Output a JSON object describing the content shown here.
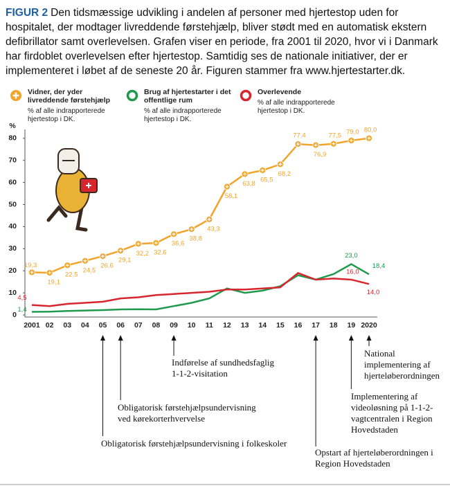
{
  "caption": {
    "label": "FIGUR 2",
    "text": "Den tidsmæssige udvikling i andelen af personer med hjertestop uden for hospitalet, der modtager livreddende førstehjælp, bliver stødt med en automatisk ekstern defibrillator samt overlevelsen. Grafen viser en periode, fra 2001 til 2020, hvor vi i Danmark har firdoblet overlevelsen efter hjertestop. Samtidig ses de nationale initiativer, der er implementeret i løbet af de seneste 20 år. Figuren stammer fra www.hjertestarter.dk."
  },
  "chart_data": {
    "type": "line",
    "y_label": "%",
    "categories": [
      "2001",
      "02",
      "03",
      "04",
      "05",
      "06",
      "07",
      "08",
      "09",
      "10",
      "11",
      "12",
      "13",
      "14",
      "15",
      "16",
      "17",
      "18",
      "19",
      "2020"
    ],
    "ylim": [
      0,
      84
    ],
    "yticks": [
      0,
      10,
      20,
      30,
      40,
      50,
      60,
      70,
      80
    ],
    "grid": false,
    "series": [
      {
        "name": "Vidner, der yder livreddende førstehjælp",
        "note": "% af alle indrapporterede hjertestop i DK.",
        "color": "#f2a42a",
        "marker": true,
        "values": [
          19.3,
          19.1,
          22.5,
          24.5,
          26.6,
          29.1,
          32.2,
          32.6,
          36.6,
          38.8,
          43.3,
          58.1,
          63.8,
          65.5,
          68.2,
          77.4,
          76.9,
          77.5,
          79.0,
          80.0
        ],
        "value_labels": [
          "19,3",
          "19,1",
          "22,5",
          "24,5",
          "26,6",
          "29,1",
          "32,2",
          "32,6",
          "36,6",
          "38,8",
          "43,3",
          "58,1",
          "63,8",
          "65,5",
          "68,2",
          "77,4",
          "76,9",
          "77,5",
          "79,0",
          "80,0"
        ]
      },
      {
        "name": "Brug af hjertestarter i det offentlige rum",
        "note": "% af alle indrapporterede hjertestop i DK.",
        "color": "#1f9a4d",
        "marker": false,
        "values": [
          1.4,
          1.5,
          1.8,
          2.0,
          2.2,
          2.5,
          2.6,
          2.5,
          4.0,
          5.5,
          7.5,
          12.0,
          10.0,
          11.0,
          13.0,
          18.0,
          16.0,
          18.5,
          23.0,
          18.4
        ],
        "value_labels": [
          "1,4",
          null,
          null,
          null,
          null,
          null,
          null,
          null,
          null,
          null,
          null,
          null,
          null,
          null,
          null,
          null,
          null,
          null,
          "23,0",
          "18,4"
        ]
      },
      {
        "name": "Overlevende",
        "note": "% af alle indrapporterede hjertestop i DK.",
        "color": "#d8262e",
        "marker": false,
        "values": [
          4.5,
          4.0,
          5.0,
          5.5,
          6.0,
          7.5,
          8.0,
          9.0,
          9.5,
          10.0,
          10.5,
          11.5,
          11.5,
          12.0,
          12.5,
          19.0,
          16.0,
          16.5,
          16.0,
          14.0
        ],
        "value_labels": [
          "4,5",
          null,
          null,
          null,
          null,
          null,
          null,
          null,
          null,
          null,
          null,
          null,
          null,
          null,
          null,
          null,
          null,
          null,
          "16,0",
          "14,0"
        ]
      }
    ],
    "annotations": [
      {
        "x": "09",
        "lines": [
          "Indførelse  af  sundhedsfaglig",
          "1-1-2-visitation"
        ]
      },
      {
        "x": "06",
        "lines": [
          "Obligatorisk  førstehjælpsundervisning",
          "ved kørekorterhvervelse"
        ]
      },
      {
        "x": "05",
        "lines": [
          "Obligatorisk  førstehjælpsundervisning  i folkeskoler"
        ]
      },
      {
        "x": "17",
        "lines": [
          "Opstart  af  hjerteløberordningen  i",
          "Region  Hovedstaden"
        ]
      },
      {
        "x": "19",
        "lines": [
          "Implementering  af",
          "videoløsning  på  1-1-2-",
          "vagtcentralen  i  Region",
          "Hovedstaden"
        ]
      },
      {
        "x": "2020",
        "lines": [
          "National",
          "implementering  af",
          "hjerteløberordningen"
        ]
      }
    ]
  }
}
